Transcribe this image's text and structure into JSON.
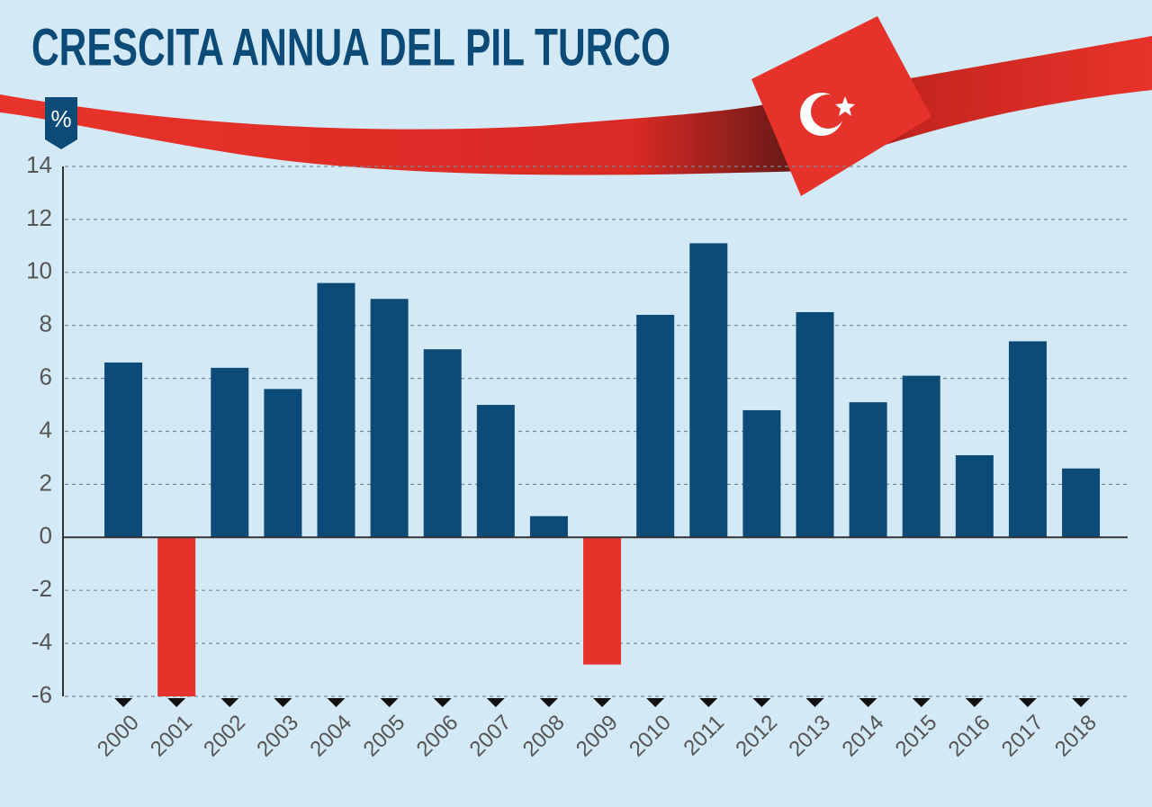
{
  "chart_data": {
    "type": "bar",
    "title": "CRESCITA ANNUA DEL PIL TURCO",
    "unit_label": "%",
    "categories": [
      "2000",
      "2001",
      "2002",
      "2003",
      "2004",
      "2005",
      "2006",
      "2007",
      "2008",
      "2009",
      "2010",
      "2011",
      "2012",
      "2013",
      "2014",
      "2015",
      "2016",
      "2017",
      "2018"
    ],
    "values": [
      6.6,
      -6.0,
      6.4,
      5.6,
      9.6,
      9.0,
      7.1,
      5.0,
      0.8,
      -4.8,
      8.4,
      11.1,
      4.8,
      8.5,
      5.1,
      6.1,
      3.1,
      7.4,
      2.6
    ],
    "color": "#0c4a77",
    "negative_color": "#e5322b",
    "ylim": [
      -6,
      14
    ],
    "yticks": [
      -6,
      -4,
      -2,
      0,
      2,
      4,
      6,
      8,
      10,
      12,
      14
    ],
    "grid": true
  }
}
